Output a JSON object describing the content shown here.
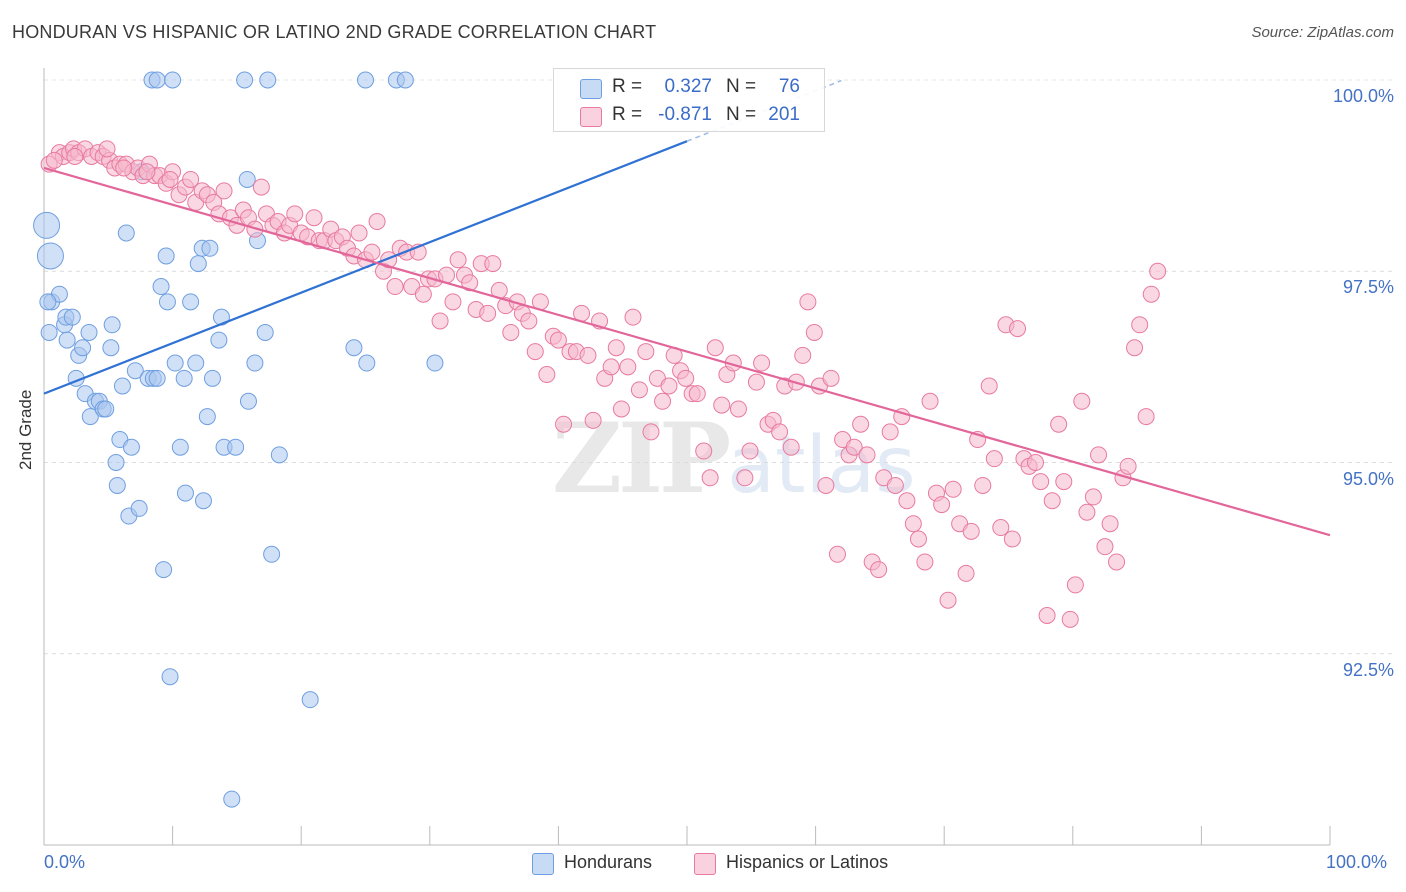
{
  "title": "HONDURAN VS HISPANIC OR LATINO 2ND GRADE CORRELATION CHART",
  "source": "Source: ZipAtlas.com",
  "watermark": {
    "zip": "ZIP",
    "atlas": "atlas"
  },
  "stats": [
    {
      "r_label": "R =",
      "r_value": "0.327",
      "n_label": "N =",
      "n_value": "76",
      "color": "#a9c6ef"
    },
    {
      "r_label": "R =",
      "r_value": "-0.871",
      "n_label": "N =",
      "n_value": "201",
      "color": "#f6b8cc"
    }
  ],
  "legend": [
    {
      "label": "Hondurans",
      "color": "#a9c6ef"
    },
    {
      "label": "Hispanics or Latinos",
      "color": "#f6b8cc"
    }
  ],
  "chart_data": {
    "type": "scatter",
    "title": "HONDURAN VS HISPANIC OR LATINO 2ND GRADE CORRELATION CHART",
    "xlabel": "",
    "ylabel": "2nd Grade",
    "xlim": [
      0,
      100
    ],
    "ylim": [
      90.0,
      100.2
    ],
    "x_tick_labels": [
      "0.0%",
      "100.0%"
    ],
    "y_tick_labels": [
      "100.0%",
      "97.5%",
      "95.0%",
      "92.5%"
    ],
    "y_ticks": [
      100.0,
      97.5,
      95.0,
      92.5
    ],
    "grid": true,
    "series": [
      {
        "name": "Hondurans",
        "color": "#6f9fe0",
        "fill": "#a9c6ef",
        "trend": {
          "x": [
            0,
            50
          ],
          "y": [
            95.9,
            99.2
          ]
        },
        "points": [
          [
            8.4,
            100.0
          ],
          [
            8.8,
            100.0
          ],
          [
            10.0,
            100.0
          ],
          [
            15.6,
            100.0
          ],
          [
            17.4,
            100.0
          ],
          [
            25.0,
            100.0
          ],
          [
            27.4,
            100.0
          ],
          [
            28.1,
            100.0
          ],
          [
            0.2,
            98.1
          ],
          [
            0.5,
            97.7
          ],
          [
            0.6,
            97.1
          ],
          [
            1.2,
            97.2
          ],
          [
            1.6,
            96.8
          ],
          [
            1.7,
            96.9
          ],
          [
            1.8,
            96.6
          ],
          [
            2.2,
            96.9
          ],
          [
            2.5,
            96.1
          ],
          [
            2.7,
            96.4
          ],
          [
            3.0,
            96.5
          ],
          [
            3.2,
            95.9
          ],
          [
            3.5,
            96.7
          ],
          [
            3.6,
            95.6
          ],
          [
            4.0,
            95.8
          ],
          [
            4.3,
            95.8
          ],
          [
            4.6,
            95.7
          ],
          [
            4.8,
            95.7
          ],
          [
            5.2,
            96.5
          ],
          [
            5.3,
            96.8
          ],
          [
            5.6,
            95.0
          ],
          [
            5.7,
            94.7
          ],
          [
            5.9,
            95.3
          ],
          [
            6.1,
            96.0
          ],
          [
            6.4,
            98.0
          ],
          [
            6.6,
            94.3
          ],
          [
            6.8,
            95.2
          ],
          [
            7.1,
            96.2
          ],
          [
            7.4,
            94.4
          ],
          [
            7.6,
            98.8
          ],
          [
            8.1,
            96.1
          ],
          [
            8.5,
            96.1
          ],
          [
            8.8,
            96.1
          ],
          [
            9.1,
            97.3
          ],
          [
            9.3,
            93.6
          ],
          [
            9.5,
            97.7
          ],
          [
            9.6,
            97.1
          ],
          [
            9.8,
            92.2
          ],
          [
            10.2,
            96.3
          ],
          [
            10.6,
            95.2
          ],
          [
            10.9,
            96.1
          ],
          [
            11.0,
            94.6
          ],
          [
            11.4,
            97.1
          ],
          [
            11.8,
            96.3
          ],
          [
            12.0,
            97.6
          ],
          [
            12.3,
            97.8
          ],
          [
            12.4,
            94.5
          ],
          [
            12.7,
            95.6
          ],
          [
            12.9,
            97.8
          ],
          [
            13.1,
            96.1
          ],
          [
            13.6,
            96.6
          ],
          [
            13.8,
            96.9
          ],
          [
            14.0,
            95.2
          ],
          [
            14.6,
            90.6
          ],
          [
            14.9,
            95.2
          ],
          [
            15.8,
            98.7
          ],
          [
            15.9,
            95.8
          ],
          [
            16.4,
            96.3
          ],
          [
            16.6,
            97.9
          ],
          [
            17.2,
            96.7
          ],
          [
            17.7,
            93.8
          ],
          [
            18.3,
            95.1
          ],
          [
            20.7,
            91.9
          ],
          [
            24.1,
            96.5
          ],
          [
            25.1,
            96.3
          ],
          [
            30.4,
            96.3
          ],
          [
            0.3,
            97.1
          ],
          [
            0.4,
            96.7
          ]
        ],
        "big_points": [
          [
            0.2,
            98.1
          ],
          [
            0.5,
            97.7
          ]
        ]
      },
      {
        "name": "Hispanics or Latinos",
        "color": "#e87aa0",
        "fill": "#f6b8cc",
        "trend": {
          "x": [
            0,
            100
          ],
          "y": [
            98.85,
            94.05
          ]
        },
        "points": [
          [
            0.4,
            98.9
          ],
          [
            1.2,
            99.05
          ],
          [
            1.5,
            99.0
          ],
          [
            2.0,
            99.05
          ],
          [
            2.3,
            99.1
          ],
          [
            2.7,
            99.05
          ],
          [
            3.2,
            99.1
          ],
          [
            3.7,
            99.0
          ],
          [
            4.2,
            99.05
          ],
          [
            4.6,
            99.0
          ],
          [
            5.1,
            98.95
          ],
          [
            5.5,
            98.85
          ],
          [
            5.9,
            98.9
          ],
          [
            6.4,
            98.9
          ],
          [
            6.9,
            98.8
          ],
          [
            7.3,
            98.85
          ],
          [
            7.7,
            98.75
          ],
          [
            8.2,
            98.9
          ],
          [
            8.6,
            98.75
          ],
          [
            9.0,
            98.75
          ],
          [
            9.5,
            98.65
          ],
          [
            10.0,
            98.8
          ],
          [
            10.5,
            98.5
          ],
          [
            11.0,
            98.6
          ],
          [
            11.4,
            98.7
          ],
          [
            11.8,
            98.4
          ],
          [
            12.3,
            98.55
          ],
          [
            12.7,
            98.5
          ],
          [
            13.2,
            98.4
          ],
          [
            13.6,
            98.25
          ],
          [
            14.0,
            98.55
          ],
          [
            14.5,
            98.2
          ],
          [
            15.0,
            98.1
          ],
          [
            15.5,
            98.3
          ],
          [
            15.9,
            98.2
          ],
          [
            16.4,
            98.05
          ],
          [
            16.9,
            98.6
          ],
          [
            17.3,
            98.25
          ],
          [
            17.8,
            98.1
          ],
          [
            18.2,
            98.15
          ],
          [
            18.7,
            98.0
          ],
          [
            19.1,
            98.1
          ],
          [
            19.5,
            98.25
          ],
          [
            20.0,
            98.0
          ],
          [
            20.5,
            97.95
          ],
          [
            21.0,
            98.2
          ],
          [
            21.4,
            97.9
          ],
          [
            21.8,
            97.9
          ],
          [
            22.3,
            98.05
          ],
          [
            22.7,
            97.9
          ],
          [
            23.2,
            97.95
          ],
          [
            23.6,
            97.8
          ],
          [
            24.1,
            97.7
          ],
          [
            24.5,
            98.0
          ],
          [
            25.0,
            97.65
          ],
          [
            25.5,
            97.75
          ],
          [
            25.9,
            98.15
          ],
          [
            26.4,
            97.5
          ],
          [
            26.8,
            97.65
          ],
          [
            27.3,
            97.3
          ],
          [
            27.7,
            97.8
          ],
          [
            28.2,
            97.75
          ],
          [
            28.6,
            97.3
          ],
          [
            29.1,
            97.75
          ],
          [
            29.5,
            97.2
          ],
          [
            29.9,
            97.4
          ],
          [
            30.4,
            97.4
          ],
          [
            30.8,
            96.85
          ],
          [
            31.3,
            97.45
          ],
          [
            31.8,
            97.1
          ],
          [
            32.2,
            97.65
          ],
          [
            32.7,
            97.45
          ],
          [
            33.1,
            97.35
          ],
          [
            33.6,
            97.0
          ],
          [
            34.0,
            97.6
          ],
          [
            34.5,
            96.95
          ],
          [
            34.9,
            97.6
          ],
          [
            35.4,
            97.25
          ],
          [
            35.9,
            97.05
          ],
          [
            36.3,
            96.7
          ],
          [
            36.8,
            97.1
          ],
          [
            37.2,
            96.95
          ],
          [
            37.7,
            96.85
          ],
          [
            38.2,
            96.45
          ],
          [
            38.6,
            97.1
          ],
          [
            39.1,
            96.15
          ],
          [
            39.6,
            96.65
          ],
          [
            40.0,
            96.6
          ],
          [
            40.4,
            95.5
          ],
          [
            40.9,
            96.45
          ],
          [
            41.4,
            96.45
          ],
          [
            41.8,
            96.95
          ],
          [
            42.3,
            96.4
          ],
          [
            42.7,
            95.55
          ],
          [
            43.2,
            96.85
          ],
          [
            43.6,
            96.1
          ],
          [
            44.1,
            96.25
          ],
          [
            44.5,
            96.5
          ],
          [
            44.9,
            95.7
          ],
          [
            45.4,
            96.25
          ],
          [
            45.8,
            96.9
          ],
          [
            46.3,
            95.95
          ],
          [
            46.8,
            96.45
          ],
          [
            47.2,
            95.4
          ],
          [
            47.7,
            96.1
          ],
          [
            48.1,
            95.8
          ],
          [
            48.6,
            96.0
          ],
          [
            49.0,
            96.4
          ],
          [
            49.5,
            96.2
          ],
          [
            49.9,
            96.1
          ],
          [
            50.4,
            95.9
          ],
          [
            50.8,
            95.9
          ],
          [
            51.3,
            95.15
          ],
          [
            51.8,
            94.8
          ],
          [
            52.2,
            96.5
          ],
          [
            52.7,
            95.75
          ],
          [
            53.1,
            96.15
          ],
          [
            53.6,
            96.3
          ],
          [
            54.0,
            95.7
          ],
          [
            54.5,
            94.8
          ],
          [
            54.9,
            95.15
          ],
          [
            55.4,
            96.05
          ],
          [
            55.8,
            96.3
          ],
          [
            56.3,
            95.5
          ],
          [
            56.7,
            95.55
          ],
          [
            57.2,
            95.4
          ],
          [
            57.6,
            96.0
          ],
          [
            58.1,
            95.2
          ],
          [
            58.5,
            96.05
          ],
          [
            59.0,
            96.4
          ],
          [
            59.4,
            97.1
          ],
          [
            59.9,
            96.7
          ],
          [
            60.3,
            96.0
          ],
          [
            60.8,
            94.7
          ],
          [
            61.2,
            96.1
          ],
          [
            61.7,
            93.8
          ],
          [
            62.1,
            95.3
          ],
          [
            62.6,
            95.1
          ],
          [
            63.0,
            95.2
          ],
          [
            63.5,
            95.5
          ],
          [
            64.0,
            95.1
          ],
          [
            64.4,
            93.7
          ],
          [
            64.9,
            93.6
          ],
          [
            65.3,
            94.8
          ],
          [
            65.8,
            95.4
          ],
          [
            66.2,
            94.7
          ],
          [
            66.7,
            95.6
          ],
          [
            67.1,
            94.5
          ],
          [
            67.6,
            94.2
          ],
          [
            68.0,
            94.0
          ],
          [
            68.5,
            93.7
          ],
          [
            68.9,
            95.8
          ],
          [
            69.4,
            94.6
          ],
          [
            69.8,
            94.45
          ],
          [
            70.3,
            93.2
          ],
          [
            70.7,
            94.65
          ],
          [
            71.2,
            94.2
          ],
          [
            71.7,
            93.55
          ],
          [
            72.1,
            94.1
          ],
          [
            72.6,
            95.3
          ],
          [
            73.0,
            94.7
          ],
          [
            73.5,
            96.0
          ],
          [
            73.9,
            95.05
          ],
          [
            74.4,
            94.15
          ],
          [
            74.8,
            96.8
          ],
          [
            75.3,
            94.0
          ],
          [
            75.7,
            96.75
          ],
          [
            76.2,
            95.05
          ],
          [
            76.6,
            94.95
          ],
          [
            77.1,
            95.0
          ],
          [
            77.5,
            94.75
          ],
          [
            78.0,
            93.0
          ],
          [
            78.4,
            94.5
          ],
          [
            78.9,
            95.5
          ],
          [
            79.3,
            94.75
          ],
          [
            79.8,
            92.95
          ],
          [
            80.2,
            93.4
          ],
          [
            80.7,
            95.8
          ],
          [
            81.1,
            94.35
          ],
          [
            81.6,
            94.55
          ],
          [
            82.0,
            95.1
          ],
          [
            82.5,
            93.9
          ],
          [
            82.9,
            94.2
          ],
          [
            83.4,
            93.7
          ],
          [
            83.9,
            94.8
          ],
          [
            84.3,
            94.95
          ],
          [
            84.8,
            96.5
          ],
          [
            85.2,
            96.8
          ],
          [
            85.7,
            95.6
          ],
          [
            86.1,
            97.2
          ],
          [
            86.6,
            97.5
          ],
          [
            0.8,
            98.95
          ],
          [
            2.4,
            99.0
          ],
          [
            4.9,
            99.1
          ],
          [
            6.2,
            98.85
          ],
          [
            8.0,
            98.8
          ],
          [
            9.8,
            98.7
          ]
        ]
      }
    ]
  }
}
